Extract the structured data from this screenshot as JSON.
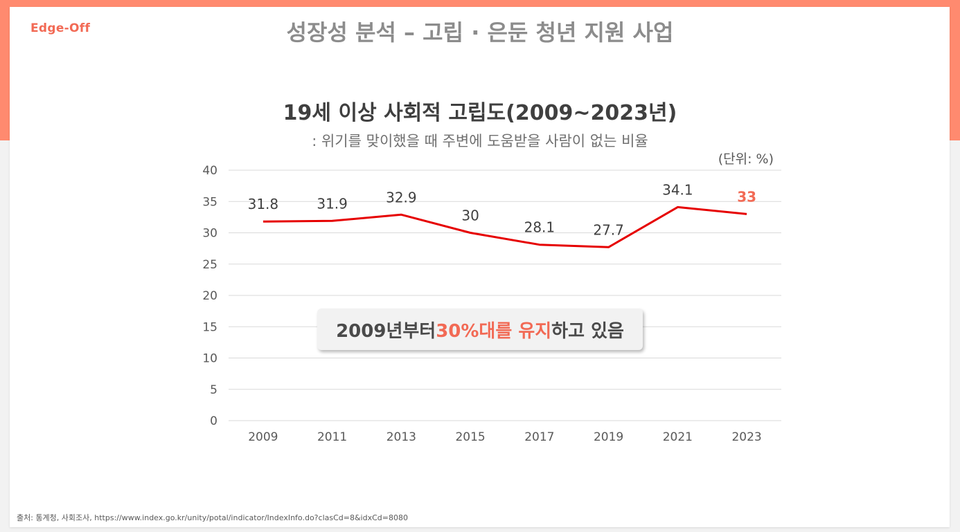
{
  "logo": "Edge-Off",
  "slide_title": "성장성 분석 – 고립 · 은둔 청년 지원 사업",
  "chart_title": "19세 이상 사회적 고립도(2009~2023년)",
  "chart_subtitle": ": 위기를 맞이했을 때 주변에 도움받을 사람이 없는 비율",
  "unit_label": "(단위: %)",
  "callout": {
    "part1": "2009년부터 ",
    "highlight": "30%대를 유지",
    "part2": "하고 있음"
  },
  "source": "출처: 통계청, 사회조사, https://www.index.go.kr/unity/potal/indicator/IndexInfo.do?clasCd=8&idxCd=8080",
  "colors": {
    "accent": "#ff8a6f",
    "line": "#e60000",
    "highlight_text": "#f26a55"
  },
  "chart_data": {
    "type": "line",
    "title": "19세 이상 사회적 고립도(2009~2023년)",
    "subtitle": ": 위기를 맞이했을 때 주변에 도움받을 사람이 없는 비율",
    "x": [
      "2009",
      "2011",
      "2013",
      "2015",
      "2017",
      "2019",
      "2021",
      "2023"
    ],
    "series": [
      {
        "values": [
          31.8,
          31.9,
          32.9,
          30,
          28.1,
          27.7,
          34.1,
          33
        ],
        "labels": [
          "31.8",
          "31.9",
          "32.9",
          "30",
          "28.1",
          "27.7",
          "34.1",
          "33"
        ]
      }
    ],
    "highlight_index": 7,
    "ylim": [
      0,
      40
    ],
    "yticks": [
      "0",
      "5",
      "10",
      "15",
      "20",
      "25",
      "30",
      "35",
      "40"
    ],
    "xlabel": "",
    "ylabel": "",
    "grid": true,
    "legend": "none"
  }
}
